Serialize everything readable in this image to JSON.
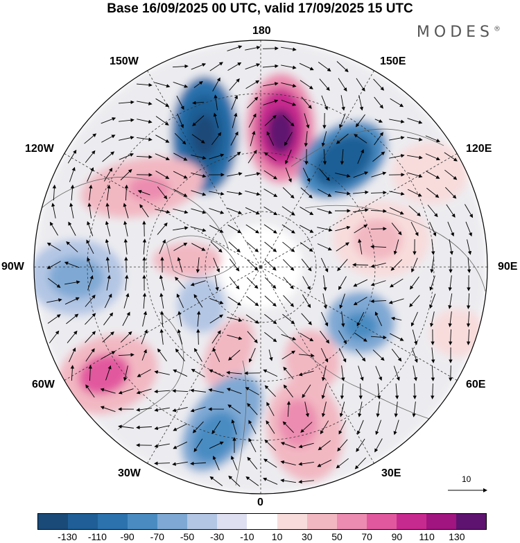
{
  "title": "Base 16/09/2025 00 UTC, valid 17/09/2025 15 UTC",
  "brand": "MODES",
  "brand_mark": "®",
  "longitude_labels": {
    "top": "180",
    "bottom": "0",
    "left": "90W",
    "right": "90E",
    "upper_left": "150W",
    "upper_right": "150E",
    "mid_upper_left": "120W",
    "mid_upper_right": "120E",
    "mid_lower_left": "60W",
    "mid_lower_right": "60E",
    "lower_left": "30W",
    "lower_right": "30E"
  },
  "vector_scale_label": "10",
  "colorbar": {
    "colors": [
      "#1a4a78",
      "#1f5e96",
      "#2c72ad",
      "#4a8cc2",
      "#7fa9d4",
      "#b3c6e4",
      "#dedff0",
      "#ffffff",
      "#f8dcdc",
      "#f2b8c2",
      "#ec8cb0",
      "#e2589f",
      "#c72a8e",
      "#a0157f",
      "#5e1370"
    ],
    "ticks": [
      "-130",
      "-110",
      "-90",
      "-70",
      "-50",
      "-30",
      "-10",
      "10",
      "30",
      "50",
      "70",
      "90",
      "110",
      "130"
    ]
  }
}
